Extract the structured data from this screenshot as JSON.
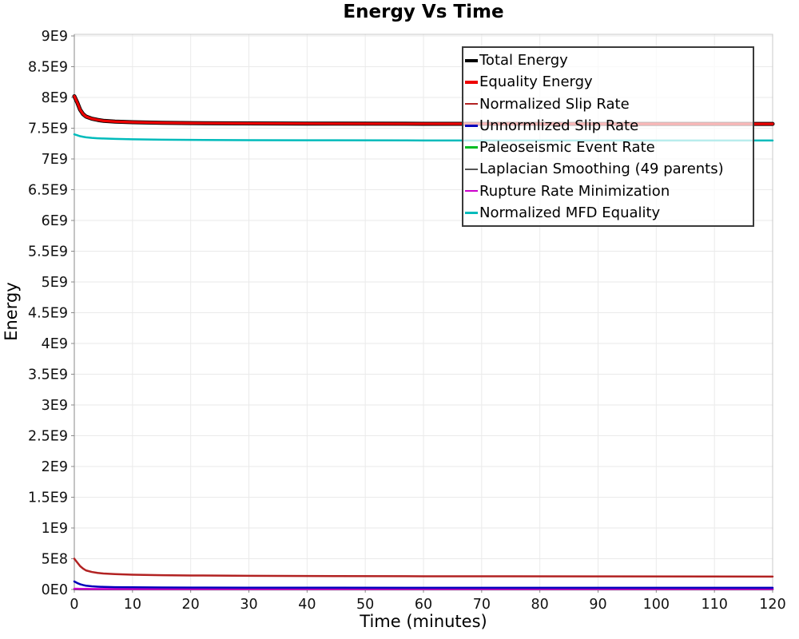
{
  "title": "Energy Vs Time",
  "axes": {
    "xlabel": "Time (minutes)",
    "ylabel": "Energy",
    "x_tick_values": [
      0,
      10,
      20,
      30,
      40,
      50,
      60,
      70,
      80,
      90,
      100,
      110,
      120
    ],
    "x_tick_labels": [
      "0",
      "10",
      "20",
      "30",
      "40",
      "50",
      "60",
      "70",
      "80",
      "90",
      "100",
      "110",
      "120"
    ],
    "y_tick_values": [
      0,
      500000000.0,
      1000000000.0,
      1500000000.0,
      2000000000.0,
      2500000000.0,
      3000000000.0,
      3500000000.0,
      4000000000.0,
      4500000000.0,
      5000000000.0,
      5500000000.0,
      6000000000.0,
      6500000000.0,
      7000000000.0,
      7500000000.0,
      8000000000.0,
      8500000000.0,
      9000000000.0
    ],
    "y_tick_labels": [
      "0E0",
      "5E8",
      "1E9",
      "1.5E9",
      "2E9",
      "2.5E9",
      "3E9",
      "3.5E9",
      "4E9",
      "4.5E9",
      "5E9",
      "5.5E9",
      "6E9",
      "6.5E9",
      "7E9",
      "7.5E9",
      "8E9",
      "8.5E9",
      "9E9"
    ]
  },
  "colors": {
    "grid": "#eaeaea",
    "plot_border": "#c8c8c8",
    "axis_line": "#8a8a8a",
    "tick_mark": "#8a8a8a",
    "tick_text": "#111111",
    "legend_border": "#3a3a3a"
  },
  "chart_data": {
    "type": "line",
    "title": "Energy Vs Time",
    "xlabel": "Time (minutes)",
    "ylabel": "Energy",
    "xlim": [
      0,
      120
    ],
    "ylim": [
      0,
      9000000000.0
    ],
    "grid": true,
    "legend_position": "top-right-inside",
    "x": [
      0,
      0.5,
      1,
      1.5,
      2,
      3,
      4,
      5,
      7,
      10,
      15,
      20,
      30,
      45,
      60,
      90,
      120
    ],
    "series": [
      {
        "name": "Total Energy",
        "color": "#000000",
        "line_width": 5,
        "swatch_height": 4,
        "z": 7,
        "values": [
          8020000000.0,
          7920000000.0,
          7800000000.0,
          7730000000.0,
          7690000000.0,
          7655000000.0,
          7635000000.0,
          7620000000.0,
          7607000000.0,
          7597000000.0,
          7588000000.0,
          7583000000.0,
          7578000000.0,
          7574000000.0,
          7572000000.0,
          7570000000.0,
          7570000000.0
        ]
      },
      {
        "name": "Equality Energy",
        "color": "#ee0000",
        "line_width": 3.2,
        "swatch_height": 4,
        "z": 8,
        "values": [
          8020000000.0,
          7920000000.0,
          7800000000.0,
          7730000000.0,
          7690000000.0,
          7655000000.0,
          7635000000.0,
          7620000000.0,
          7607000000.0,
          7597000000.0,
          7588000000.0,
          7583000000.0,
          7578000000.0,
          7574000000.0,
          7572000000.0,
          7570000000.0,
          7570000000.0
        ]
      },
      {
        "name": "Normalized Slip Rate",
        "color": "#b22222",
        "line_width": 2.5,
        "swatch_height": 2.5,
        "z": 5,
        "values": [
          500000000.0,
          440000000.0,
          380000000.0,
          340000000.0,
          310000000.0,
          285000000.0,
          270000000.0,
          260000000.0,
          250000000.0,
          240000000.0,
          232000000.0,
          228000000.0,
          222000000.0,
          218000000.0,
          215000000.0,
          212000000.0,
          210000000.0
        ]
      },
      {
        "name": "Unnormlized Slip Rate",
        "color": "#0000bb",
        "line_width": 2.5,
        "swatch_height": 2.5,
        "z": 4,
        "values": [
          130000000.0,
          105000000.0,
          85000000.0,
          72000000.0,
          62000000.0,
          52000000.0,
          46000000.0,
          42000000.0,
          38000000.0,
          35000000.0,
          32000000.0,
          31000000.0,
          30000000.0,
          29000000.0,
          28000000.0,
          27000000.0,
          27000000.0
        ]
      },
      {
        "name": "Paleoseismic Event Rate",
        "color": "#00bb22",
        "line_width": 2.5,
        "swatch_height": 2.5,
        "z": 1,
        "values": [
          5000000.0,
          5000000.0,
          4000000.0,
          4000000.0,
          4000000.0,
          4000000.0,
          4000000.0,
          4000000.0,
          4000000.0,
          4000000.0,
          4000000.0,
          4000000.0,
          4000000.0,
          4000000.0,
          4000000.0,
          4000000.0,
          4000000.0
        ]
      },
      {
        "name": "Laplacian Smoothing (49 parents)",
        "color": "#555555",
        "line_width": 2.5,
        "swatch_height": 2.5,
        "z": 2,
        "values": [
          3000000.0,
          3000000.0,
          2000000.0,
          2000000.0,
          2000000.0,
          2000000.0,
          2000000.0,
          2000000.0,
          2000000.0,
          2000000.0,
          2000000.0,
          2000000.0,
          2000000.0,
          2000000.0,
          2000000.0,
          2000000.0,
          2000000.0
        ]
      },
      {
        "name": "Rupture Rate Minimization",
        "color": "#cc00cc",
        "line_width": 2.5,
        "swatch_height": 2.5,
        "z": 3,
        "values": [
          12000000.0,
          11000000.0,
          10000000.0,
          9500000.0,
          9000000.0,
          8800000.0,
          8600000.0,
          8500000.0,
          8400000.0,
          8300000.0,
          8200000.0,
          8100000.0,
          8000000.0,
          8000000.0,
          8000000.0,
          8000000.0,
          8000000.0
        ]
      },
      {
        "name": "Normalized MFD Equality",
        "color": "#00bbbb",
        "line_width": 2.5,
        "swatch_height": 2.5,
        "z": 6,
        "values": [
          7400000000.0,
          7385000000.0,
          7370000000.0,
          7360000000.0,
          7352000000.0,
          7342000000.0,
          7336000000.0,
          7332000000.0,
          7326000000.0,
          7320000000.0,
          7313000000.0,
          7310000000.0,
          7306000000.0,
          7303000000.0,
          7301000000.0,
          7300000000.0,
          7300000000.0
        ]
      }
    ]
  }
}
